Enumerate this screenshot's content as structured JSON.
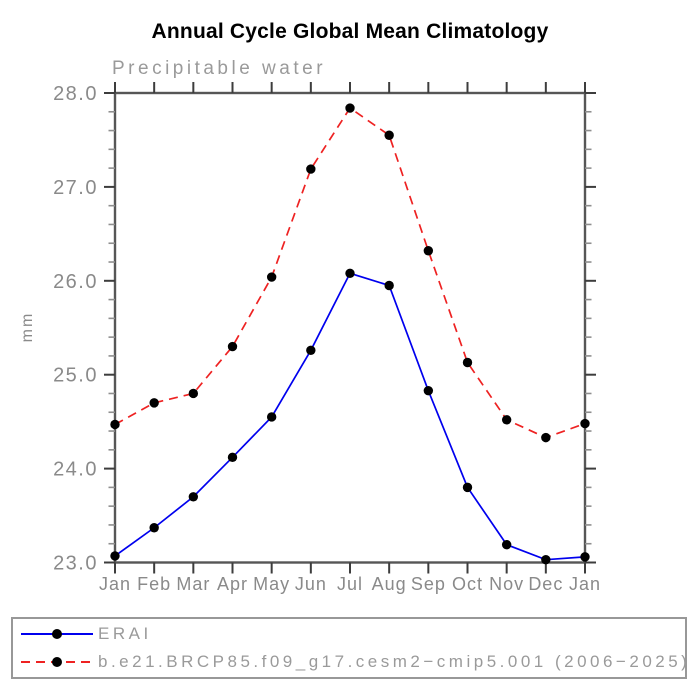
{
  "title": "Annual Cycle Global Mean Climatology",
  "chart_data": {
    "type": "line",
    "title": "Annual Cycle Global Mean Climatology",
    "subtitle": "Precipitable water",
    "ylabel": "mm",
    "x_categories": [
      "Jan",
      "Feb",
      "Mar",
      "Apr",
      "May",
      "Jun",
      "Jul",
      "Aug",
      "Sep",
      "Oct",
      "Nov",
      "Dec",
      "Jan"
    ],
    "ylim": [
      23.0,
      28.0
    ],
    "ytick_values": [
      23.0,
      24.0,
      25.0,
      26.0,
      27.0,
      28.0
    ],
    "ytick_labels": [
      "23.0",
      "24.0",
      "25.0",
      "26.0",
      "27.0",
      "28.0"
    ],
    "minor_tick_step": 0.2,
    "grid": false,
    "legend_position": "bottom box, outside plot",
    "marker": "filled-circle",
    "marker_color": "#000000",
    "series": [
      {
        "name": "ERAI",
        "color": "#0000ee",
        "line_style": "solid",
        "values": [
          23.07,
          23.37,
          23.7,
          24.12,
          24.55,
          25.26,
          26.08,
          25.95,
          24.83,
          23.8,
          23.19,
          23.03,
          23.06
        ]
      },
      {
        "name": "b.e21.BRCP85.f09_g17.cesm2−cmip5.001 (2006−2025)",
        "color": "#ee2222",
        "line_style": "dashed",
        "values": [
          24.47,
          24.7,
          24.8,
          25.3,
          26.04,
          27.19,
          27.84,
          27.55,
          26.32,
          25.13,
          24.52,
          24.33,
          24.48
        ]
      }
    ]
  },
  "colors": {
    "background": "#ffffff",
    "title_text": "#000000",
    "axis_frame": "#565656",
    "major_tick": "#3d3d3d",
    "minor_tick": "#8f8f8f",
    "label_text": "#8a8a8a",
    "subtitle_text": "#9a9a9a",
    "legend_border": "#989898",
    "legend_text": "#9a9a9a"
  }
}
